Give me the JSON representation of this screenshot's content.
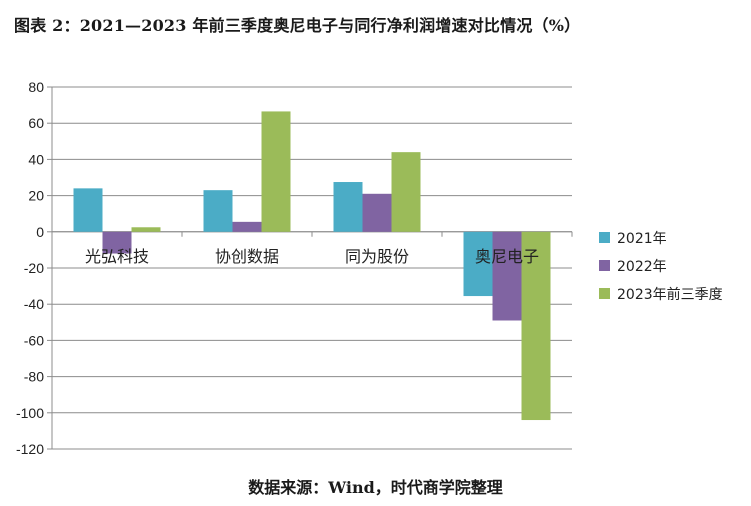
{
  "chart_data": {
    "type": "bar",
    "title": "图表 2：2021—2023 年前三季度奥尼电子与同行净利润增速对比情况（%）",
    "source": "数据来源：Wind，时代商学院整理",
    "categories": [
      "光弘科技",
      "协创数据",
      "同为股份",
      "奥尼电子"
    ],
    "series": [
      {
        "name": "2021年",
        "color": "#4BACC6",
        "values": [
          24,
          23,
          27.5,
          -35.5
        ]
      },
      {
        "name": "2022年",
        "color": "#8064A2",
        "values": [
          -12,
          5.5,
          21,
          -49
        ]
      },
      {
        "name": "2023年前三季度",
        "color": "#9BBB59",
        "values": [
          2.5,
          66.5,
          44,
          -104
        ]
      }
    ],
    "ylim": [
      -120,
      80
    ],
    "yticks": [
      "80",
      "60",
      "40",
      "20",
      "0",
      "-20",
      "-40",
      "-60",
      "-80",
      "-100",
      "-120"
    ],
    "xlabel": "",
    "ylabel": "",
    "grid": true,
    "legend_position": "right"
  }
}
